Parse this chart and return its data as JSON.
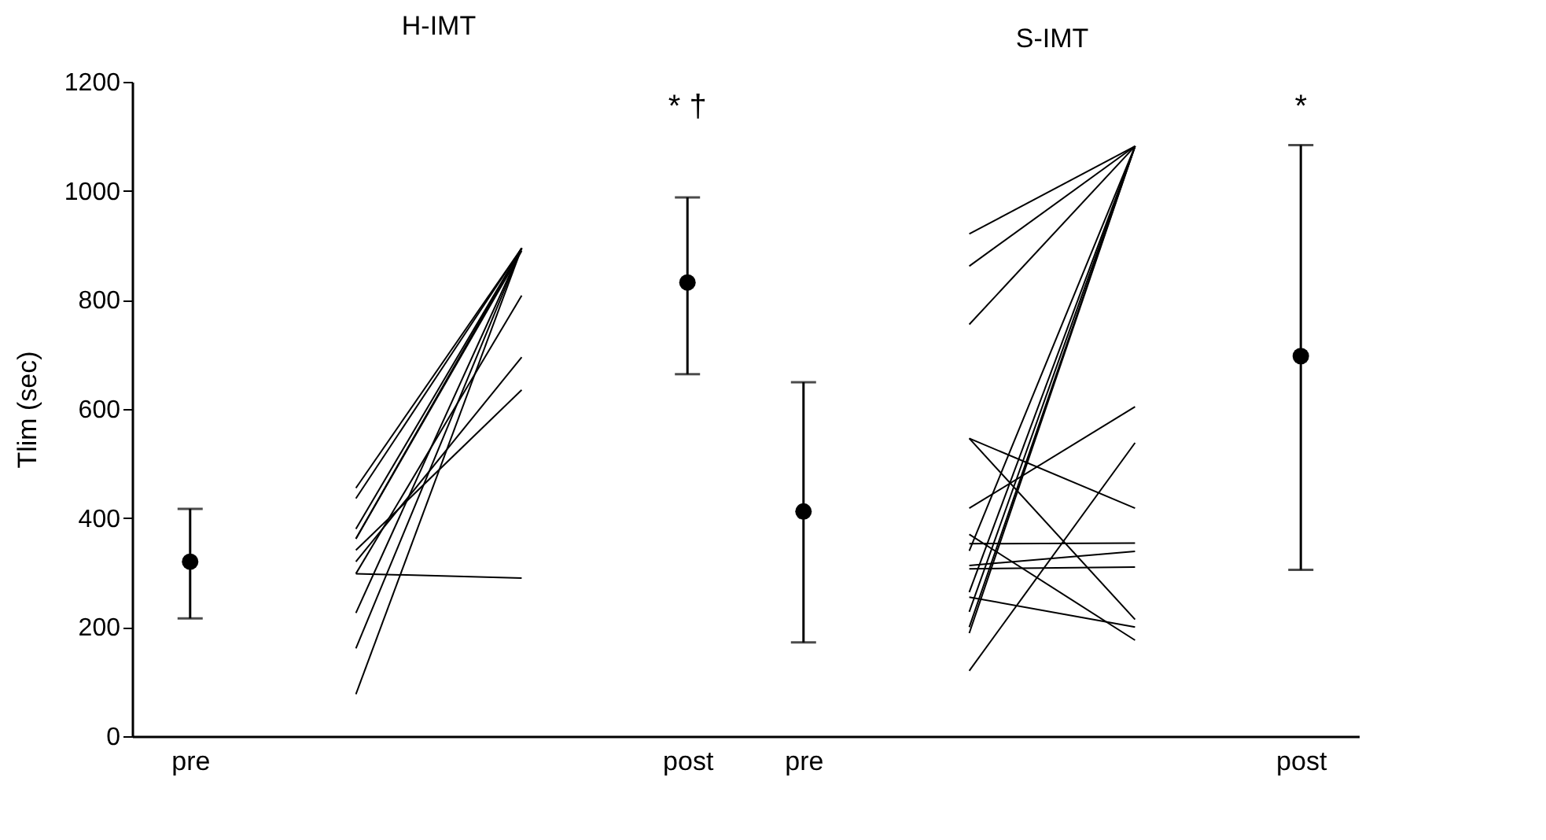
{
  "chart_data": [
    {
      "type": "line",
      "title": "H-IMT",
      "ylabel": "Tlim (sec)",
      "categories": [
        "pre",
        null,
        null,
        "post"
      ],
      "ylim": [
        0,
        1200
      ],
      "yticks": [
        0,
        200,
        400,
        600,
        800,
        1000,
        1200
      ],
      "grid": false,
      "legend": false,
      "annotations": [
        "* †"
      ],
      "series": [
        {
          "type": "scatter",
          "marker": "circle",
          "color": "#000000",
          "values": [
            320,
            null,
            null,
            832
          ],
          "errors": [
            [
              216,
              417
            ],
            null,
            null,
            [
              664,
              988
            ]
          ]
        },
        {
          "type": "line",
          "marker": "none",
          "color": "#000000",
          "values": [
            null,
            455,
            895,
            null
          ]
        },
        {
          "type": "line",
          "marker": "none",
          "color": "#000000",
          "values": [
            null,
            436,
            895,
            null
          ]
        },
        {
          "type": "line",
          "marker": "none",
          "color": "#000000",
          "values": [
            null,
            380,
            895,
            null
          ]
        },
        {
          "type": "line",
          "marker": "none",
          "color": "#000000",
          "values": [
            null,
            362,
            895,
            null
          ]
        },
        {
          "type": "line",
          "marker": "none",
          "color": "#000000",
          "values": [
            null,
            362,
            890,
            null
          ]
        },
        {
          "type": "line",
          "marker": "none",
          "color": "#000000",
          "values": [
            null,
            341,
            635,
            null
          ]
        },
        {
          "type": "line",
          "marker": "none",
          "color": "#000000",
          "values": [
            null,
            320,
            695,
            null
          ]
        },
        {
          "type": "line",
          "marker": "none",
          "color": "#000000",
          "values": [
            null,
            298,
            290,
            null
          ]
        },
        {
          "type": "line",
          "marker": "none",
          "color": "#000000",
          "values": [
            null,
            298,
            808,
            null
          ]
        },
        {
          "type": "line",
          "marker": "none",
          "color": "#000000",
          "values": [
            null,
            226,
            895,
            null
          ]
        },
        {
          "type": "line",
          "marker": "none",
          "color": "#000000",
          "values": [
            null,
            161,
            895,
            null
          ]
        },
        {
          "type": "line",
          "marker": "none",
          "color": "#000000",
          "values": [
            null,
            77,
            895,
            null
          ]
        }
      ]
    },
    {
      "type": "line",
      "title": "S-IMT",
      "categories": [
        "pre",
        null,
        null,
        "post"
      ],
      "ylim": [
        0,
        1200
      ],
      "tick_labels": "x",
      "grid": false,
      "legend": false,
      "annotations": [
        "*"
      ],
      "series": [
        {
          "type": "scatter",
          "marker": "circle",
          "color": "#000000",
          "values": [
            412,
            null,
            null,
            697
          ],
          "errors": [
            [
              172,
              649
            ],
            null,
            null,
            [
              305,
              1084
            ]
          ]
        },
        {
          "type": "line",
          "marker": "none",
          "color": "#000000",
          "values": [
            null,
            921,
            1082,
            null
          ]
        },
        {
          "type": "line",
          "marker": "none",
          "color": "#000000",
          "values": [
            null,
            862,
            1082,
            null
          ]
        },
        {
          "type": "line",
          "marker": "none",
          "color": "#000000",
          "values": [
            null,
            755,
            1082,
            null
          ]
        },
        {
          "type": "line",
          "marker": "none",
          "color": "#000000",
          "values": [
            null,
            546,
            418,
            null
          ]
        },
        {
          "type": "line",
          "marker": "none",
          "color": "#000000",
          "values": [
            null,
            546,
            214,
            null
          ]
        },
        {
          "type": "line",
          "marker": "none",
          "color": "#000000",
          "values": [
            null,
            418,
            604,
            null
          ]
        },
        {
          "type": "line",
          "marker": "none",
          "color": "#000000",
          "values": [
            null,
            120,
            538,
            null
          ]
        },
        {
          "type": "line",
          "marker": "none",
          "color": "#000000",
          "values": [
            null,
            353,
            354,
            null
          ]
        },
        {
          "type": "line",
          "marker": "none",
          "color": "#000000",
          "values": [
            null,
            313,
            339,
            null
          ]
        },
        {
          "type": "line",
          "marker": "none",
          "color": "#000000",
          "values": [
            null,
            307,
            310,
            null
          ]
        },
        {
          "type": "line",
          "marker": "none",
          "color": "#000000",
          "values": [
            null,
            370,
            176,
            null
          ]
        },
        {
          "type": "line",
          "marker": "none",
          "color": "#000000",
          "values": [
            null,
            255,
            200,
            null
          ]
        },
        {
          "type": "line",
          "marker": "none",
          "color": "#000000",
          "values": [
            null,
            340,
            1082,
            null
          ]
        },
        {
          "type": "line",
          "marker": "none",
          "color": "#000000",
          "values": [
            null,
            264,
            1082,
            null
          ]
        },
        {
          "type": "line",
          "marker": "none",
          "color": "#000000",
          "values": [
            null,
            228,
            1082,
            null
          ]
        },
        {
          "type": "line",
          "marker": "none",
          "color": "#000000",
          "values": [
            null,
            200,
            1082,
            null
          ]
        },
        {
          "type": "line",
          "marker": "none",
          "color": "#000000",
          "values": [
            null,
            189,
            1082,
            null
          ]
        }
      ]
    }
  ]
}
